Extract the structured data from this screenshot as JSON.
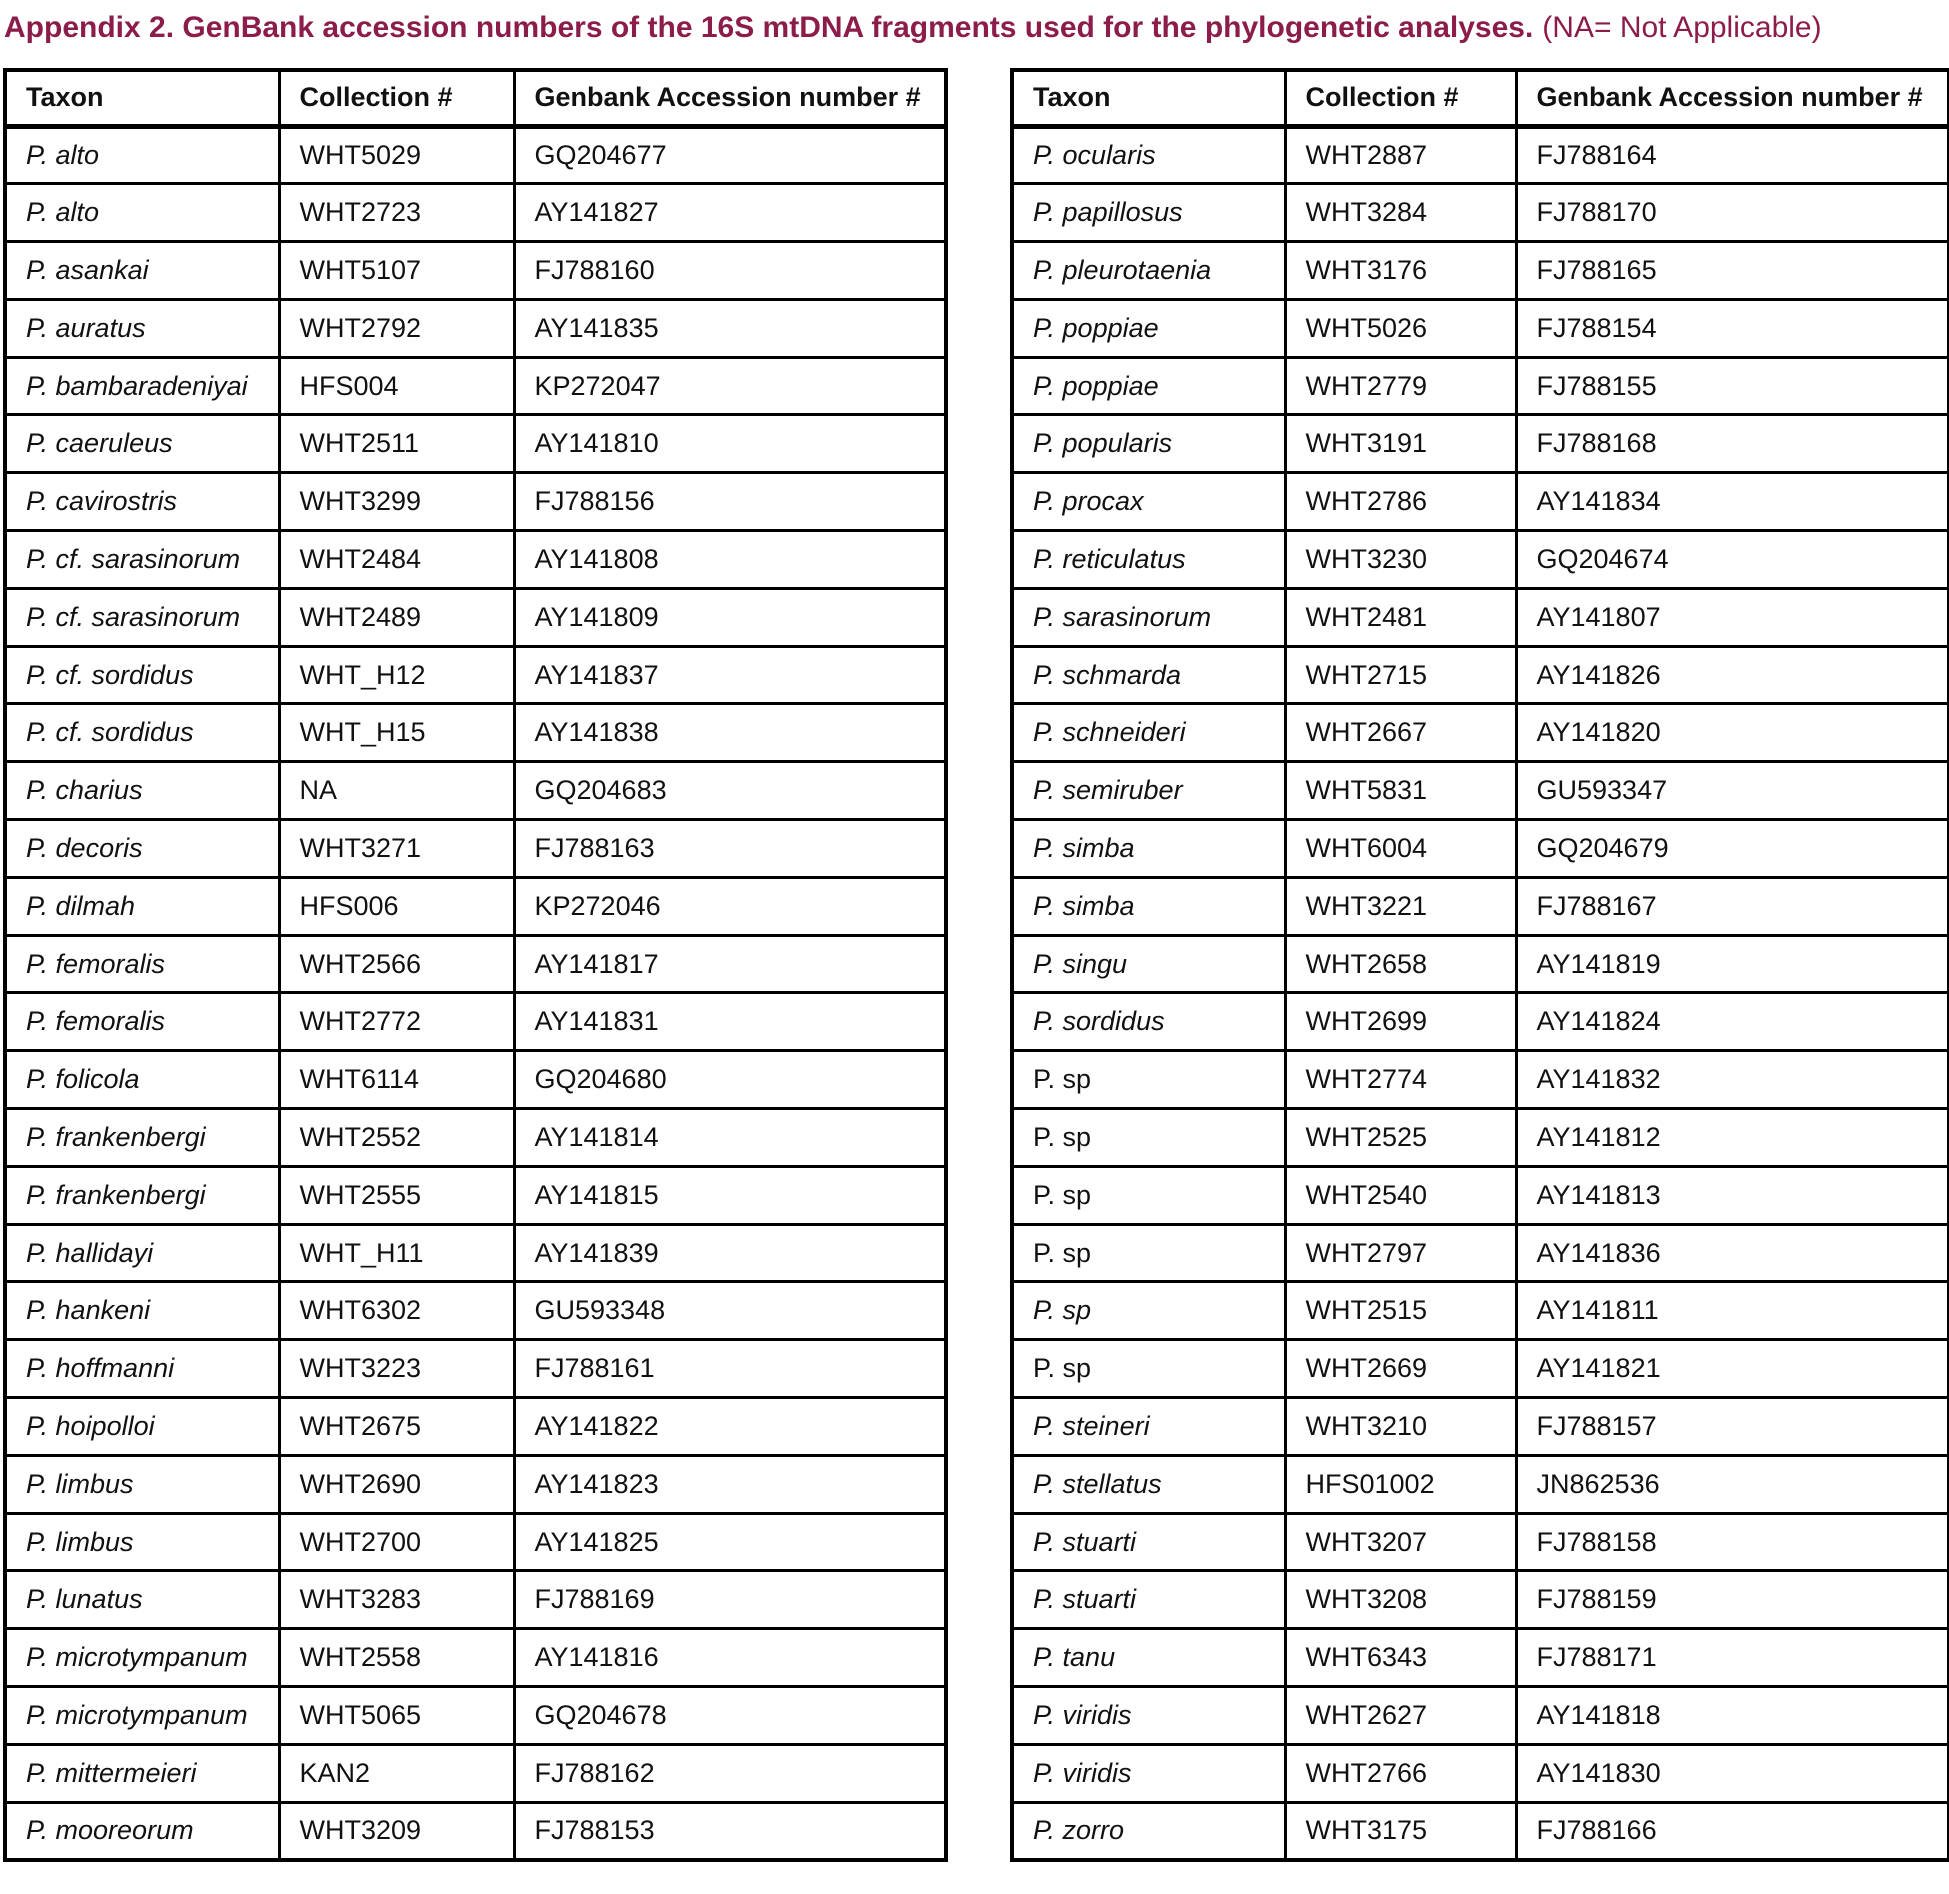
{
  "title": {
    "main": "Appendix 2. GenBank accession numbers of the 16S mtDNA fragments used for the phylogenetic analyses.",
    "note": "(NA= Not Applicable)"
  },
  "accent_color": "#8c1d4b",
  "headers": {
    "taxon": "Taxon",
    "collection": "Collection #",
    "accession": "Genbank Accession number #"
  },
  "tables": {
    "left": {
      "rows": [
        {
          "taxon": "P. alto",
          "italic": true,
          "collection": "WHT5029",
          "accession": "GQ204677"
        },
        {
          "taxon": "P. alto",
          "italic": true,
          "collection": "WHT2723",
          "accession": "AY141827"
        },
        {
          "taxon": "P. asankai",
          "italic": true,
          "collection": "WHT5107",
          "accession": "FJ788160"
        },
        {
          "taxon": "P. auratus",
          "italic": true,
          "collection": "WHT2792",
          "accession": "AY141835"
        },
        {
          "taxon": "P. bambaradeniyai",
          "italic": true,
          "collection": "HFS004",
          "accession": "KP272047"
        },
        {
          "taxon": "P. caeruleus",
          "italic": true,
          "collection": "WHT2511",
          "accession": "AY141810"
        },
        {
          "taxon": "P. cavirostris",
          "italic": true,
          "collection": "WHT3299",
          "accession": "FJ788156"
        },
        {
          "taxon": "P. cf. sarasinorum",
          "italic": true,
          "collection": "WHT2484",
          "accession": "AY141808"
        },
        {
          "taxon": "P. cf. sarasinorum",
          "italic": true,
          "collection": "WHT2489",
          "accession": "AY141809"
        },
        {
          "taxon": "P. cf. sordidus",
          "italic": true,
          "collection": "WHT_H12",
          "accession": "AY141837"
        },
        {
          "taxon": "P. cf. sordidus",
          "italic": true,
          "collection": "WHT_H15",
          "accession": "AY141838"
        },
        {
          "taxon": "P. charius",
          "italic": true,
          "collection": "NA",
          "accession": "GQ204683"
        },
        {
          "taxon": "P. decoris",
          "italic": true,
          "collection": "WHT3271",
          "accession": "FJ788163"
        },
        {
          "taxon": "P. dilmah",
          "italic": true,
          "collection": "HFS006",
          "accession": "KP272046"
        },
        {
          "taxon": "P. femoralis",
          "italic": true,
          "collection": "WHT2566",
          "accession": "AY141817"
        },
        {
          "taxon": "P. femoralis",
          "italic": true,
          "collection": "WHT2772",
          "accession": "AY141831"
        },
        {
          "taxon": "P. folicola",
          "italic": true,
          "collection": "WHT6114",
          "accession": "GQ204680"
        },
        {
          "taxon": "P. frankenbergi",
          "italic": true,
          "collection": "WHT2552",
          "accession": "AY141814"
        },
        {
          "taxon": "P. frankenbergi",
          "italic": true,
          "collection": "WHT2555",
          "accession": "AY141815"
        },
        {
          "taxon": "P. hallidayi",
          "italic": true,
          "collection": "WHT_H11",
          "accession": "AY141839"
        },
        {
          "taxon": "P. hankeni",
          "italic": true,
          "collection": "WHT6302",
          "accession": "GU593348"
        },
        {
          "taxon": "P. hoffmanni",
          "italic": true,
          "collection": "WHT3223",
          "accession": "FJ788161"
        },
        {
          "taxon": "P. hoipolloi",
          "italic": true,
          "collection": "WHT2675",
          "accession": "AY141822"
        },
        {
          "taxon": "P. limbus",
          "italic": true,
          "collection": "WHT2690",
          "accession": "AY141823"
        },
        {
          "taxon": "P. limbus",
          "italic": true,
          "collection": "WHT2700",
          "accession": "AY141825"
        },
        {
          "taxon": "P. lunatus",
          "italic": true,
          "collection": "WHT3283",
          "accession": "FJ788169"
        },
        {
          "taxon": "P. microtympanum",
          "italic": true,
          "collection": "WHT2558",
          "accession": "AY141816"
        },
        {
          "taxon": "P. microtympanum",
          "italic": true,
          "collection": "WHT5065",
          "accession": "GQ204678"
        },
        {
          "taxon": "P. mittermeieri",
          "italic": true,
          "collection": "KAN2",
          "accession": "FJ788162"
        },
        {
          "taxon": "P. mooreorum",
          "italic": true,
          "collection": "WHT3209",
          "accession": "FJ788153"
        }
      ]
    },
    "right": {
      "rows": [
        {
          "taxon": "P. ocularis",
          "italic": true,
          "collection": "WHT2887",
          "accession": "FJ788164"
        },
        {
          "taxon": "P. papillosus",
          "italic": true,
          "collection": "WHT3284",
          "accession": "FJ788170"
        },
        {
          "taxon": "P. pleurotaenia",
          "italic": true,
          "collection": "WHT3176",
          "accession": "FJ788165"
        },
        {
          "taxon": "P. poppiae",
          "italic": true,
          "collection": "WHT5026",
          "accession": "FJ788154"
        },
        {
          "taxon": "P. poppiae",
          "italic": true,
          "collection": "WHT2779",
          "accession": "FJ788155"
        },
        {
          "taxon": "P. popularis",
          "italic": true,
          "collection": "WHT3191",
          "accession": "FJ788168"
        },
        {
          "taxon": "P. procax",
          "italic": true,
          "collection": "WHT2786",
          "accession": "AY141834"
        },
        {
          "taxon": "P. reticulatus",
          "italic": true,
          "collection": "WHT3230",
          "accession": "GQ204674"
        },
        {
          "taxon": "P. sarasinorum",
          "italic": true,
          "collection": "WHT2481",
          "accession": "AY141807"
        },
        {
          "taxon": "P. schmarda",
          "italic": true,
          "collection": "WHT2715",
          "accession": "AY141826"
        },
        {
          "taxon": "P. schneideri",
          "italic": true,
          "collection": "WHT2667",
          "accession": "AY141820"
        },
        {
          "taxon": "P. semiruber",
          "italic": true,
          "collection": "WHT5831",
          "accession": "GU593347"
        },
        {
          "taxon": "P. simba",
          "italic": true,
          "collection": "WHT6004",
          "accession": "GQ204679"
        },
        {
          "taxon": "P. simba",
          "italic": true,
          "collection": "WHT3221",
          "accession": "FJ788167"
        },
        {
          "taxon": "P. singu",
          "italic": true,
          "collection": "WHT2658",
          "accession": "AY141819"
        },
        {
          "taxon": "P. sordidus",
          "italic": true,
          "collection": "WHT2699",
          "accession": "AY141824"
        },
        {
          "taxon": "P. sp",
          "italic": false,
          "collection": "WHT2774",
          "accession": "AY141832"
        },
        {
          "taxon": "P. sp",
          "italic": false,
          "collection": "WHT2525",
          "accession": "AY141812"
        },
        {
          "taxon": "P. sp",
          "italic": false,
          "collection": "WHT2540",
          "accession": "AY141813"
        },
        {
          "taxon": "P. sp",
          "italic": false,
          "collection": "WHT2797",
          "accession": "AY141836"
        },
        {
          "taxon": "P. sp",
          "italic": true,
          "collection": "WHT2515",
          "accession": "AY141811"
        },
        {
          "taxon": "P. sp",
          "italic": false,
          "collection": "WHT2669",
          "accession": "AY141821"
        },
        {
          "taxon": "P. steineri",
          "italic": true,
          "collection": "WHT3210",
          "accession": "FJ788157"
        },
        {
          "taxon": "P. stellatus",
          "italic": true,
          "collection": "HFS01002",
          "accession": "JN862536"
        },
        {
          "taxon": "P. stuarti",
          "italic": true,
          "collection": "WHT3207",
          "accession": "FJ788158"
        },
        {
          "taxon": "P. stuarti",
          "italic": true,
          "collection": "WHT3208",
          "accession": "FJ788159"
        },
        {
          "taxon": "P. tanu",
          "italic": true,
          "collection": "WHT6343",
          "accession": "FJ788171"
        },
        {
          "taxon": "P. viridis",
          "italic": true,
          "collection": "WHT2627",
          "accession": "AY141818"
        },
        {
          "taxon": "P. viridis",
          "italic": true,
          "collection": "WHT2766",
          "accession": "AY141830"
        },
        {
          "taxon": "P. zorro",
          "italic": true,
          "collection": "WHT3175",
          "accession": "FJ788166"
        }
      ]
    }
  }
}
